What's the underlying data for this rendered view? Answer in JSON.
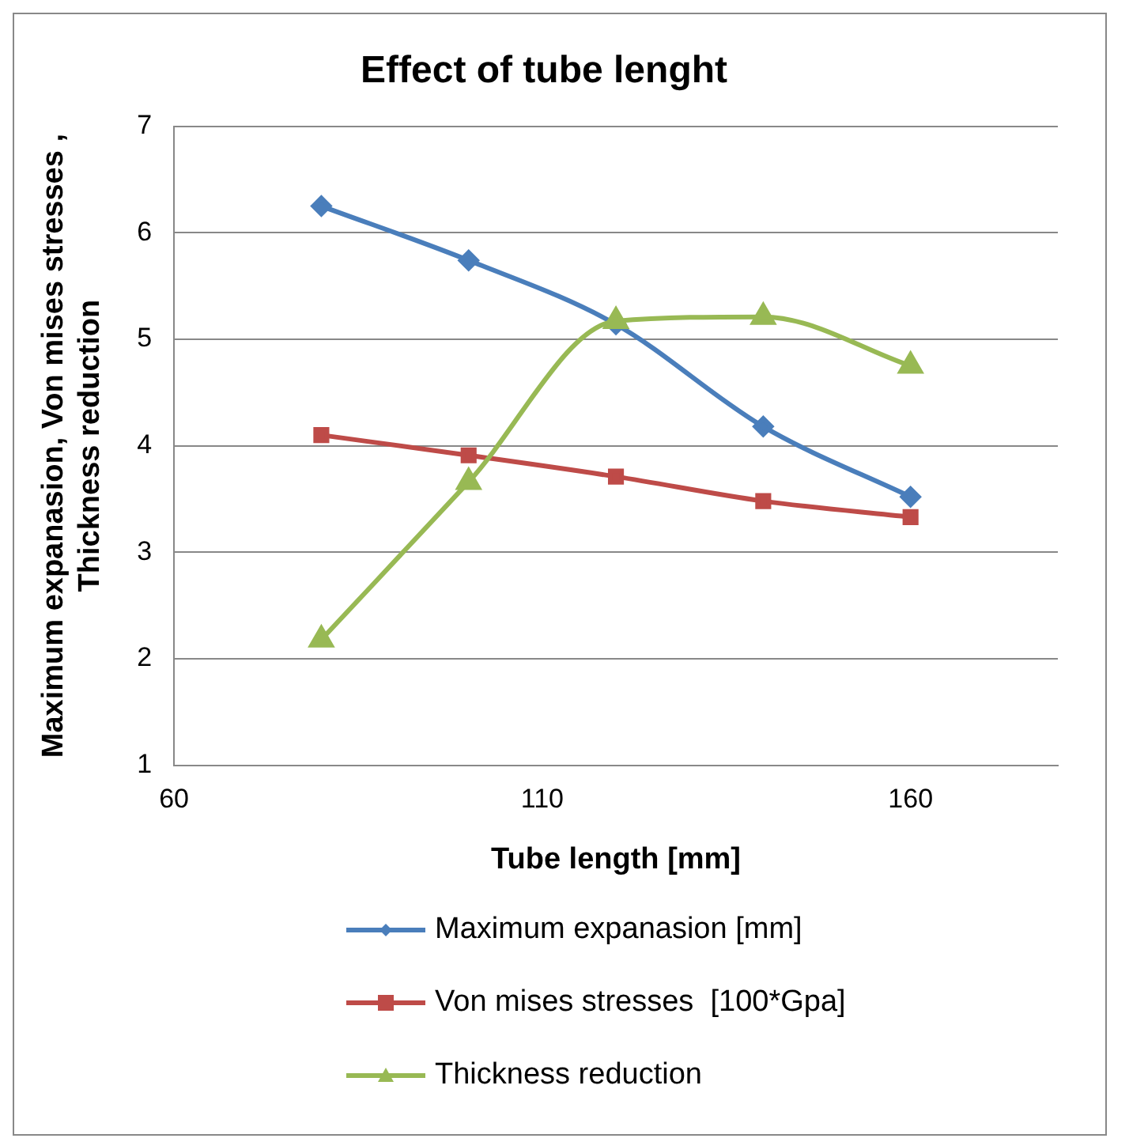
{
  "chart_data": {
    "type": "line",
    "title": "Effect of tube lenght",
    "xlabel": "Tube length [mm]",
    "ylabel": "Maximum expanasion, Von mises stresses , Thickness reduction",
    "x": [
      80,
      100,
      120,
      140,
      160
    ],
    "series": [
      {
        "name": "Maximum expanasion [mm]",
        "color": "#4a7ebb",
        "marker": "diamond",
        "values": [
          6.25,
          5.74,
          5.14,
          4.18,
          3.52
        ]
      },
      {
        "name": "Von mises stresses  [100*Gpa]",
        "color": "#be4b48",
        "marker": "square",
        "values": [
          4.1,
          3.91,
          3.71,
          3.48,
          3.33
        ]
      },
      {
        "name": "Thickness reduction",
        "color": "#98b954",
        "marker": "triangle",
        "values": [
          2.18,
          3.66,
          5.17,
          5.21,
          4.75
        ]
      }
    ],
    "xlim": [
      60,
      180
    ],
    "xticks": [
      60,
      110,
      160
    ],
    "ylim": [
      1,
      7
    ],
    "yticks": [
      1,
      2,
      3,
      4,
      5,
      6,
      7
    ],
    "grid": "y",
    "legend": "bottom"
  }
}
